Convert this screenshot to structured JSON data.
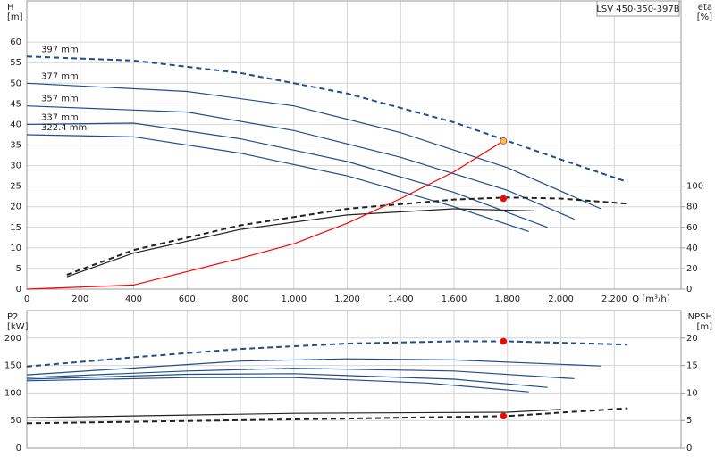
{
  "chart_data": [
    {
      "type": "line",
      "title": "LSV 450-350-397B",
      "y_label": "H",
      "y_unit": "[m]",
      "y2_label": "eta",
      "y2_unit": "[%]",
      "x_label": "Q [m³/h]",
      "xlim": [
        0,
        2450
      ],
      "xticks": [
        0,
        200,
        400,
        600,
        800,
        {
          "value": 1000,
          "label": "1,000"
        },
        {
          "value": 1200,
          "label": "1,200"
        },
        {
          "value": 1400,
          "label": "1,400"
        },
        {
          "value": 1600,
          "label": "1,600"
        },
        {
          "value": 1800,
          "label": "1,800"
        },
        {
          "value": 2000,
          "label": "2,000"
        },
        {
          "value": 2200,
          "label": "2,200"
        }
      ],
      "x_tick_labels": true,
      "ylim": [
        0,
        70
      ],
      "yticks": [
        0,
        5,
        10,
        15,
        20,
        25,
        30,
        35,
        40,
        45,
        50,
        55,
        60
      ],
      "y2lim": [
        0,
        280
      ],
      "y2ticks": [
        0,
        20,
        40,
        60,
        80,
        100
      ],
      "grid": true,
      "series": [
        {
          "name": "397 mm",
          "color": "#1f4e8c",
          "dashed": true,
          "x": [
            0,
            400,
            800,
            1200,
            1600,
            1800,
            2000,
            2250
          ],
          "values": [
            56.5,
            55.5,
            52.5,
            47.5,
            40.5,
            36,
            31.5,
            26
          ]
        },
        {
          "name": "377 mm",
          "color": "#1f4e8c",
          "x": [
            0,
            600,
            1000,
            1400,
            1800,
            2150
          ],
          "values": [
            50,
            48,
            44.5,
            38,
            29.5,
            19.5
          ]
        },
        {
          "name": "357 mm",
          "color": "#1f4e8c",
          "x": [
            0,
            600,
            1000,
            1400,
            1800,
            2050
          ],
          "values": [
            44.5,
            43,
            38.5,
            32,
            24,
            17
          ]
        },
        {
          "name": "337 mm",
          "color": "#1f4e8c",
          "x": [
            0,
            400,
            800,
            1200,
            1600,
            1950
          ],
          "values": [
            40,
            40.3,
            36.5,
            31,
            23.5,
            15
          ]
        },
        {
          "name": "322.4 mm",
          "color": "#1f4e8c",
          "x": [
            0,
            400,
            800,
            1200,
            1600,
            1880
          ],
          "values": [
            37.5,
            37,
            33,
            27.5,
            20,
            14
          ]
        },
        {
          "color": "#222222",
          "axis": "y2",
          "dashed": true,
          "x": [
            150,
            400,
            800,
            1200,
            1600,
            1800,
            2000,
            2250
          ],
          "values": [
            14,
            38,
            62,
            78,
            87,
            89,
            88,
            83
          ]
        },
        {
          "color": "#222222",
          "axis": "y2",
          "x": [
            150,
            400,
            800,
            1200,
            1600,
            1900
          ],
          "values": [
            12,
            35,
            58,
            72,
            78,
            76
          ]
        },
        {
          "color": "#ff0000",
          "x": [
            0,
            400,
            800,
            1000,
            1200,
            1400,
            1600,
            1785
          ],
          "values": [
            0,
            1,
            7.5,
            11,
            16,
            22,
            28.5,
            36
          ]
        },
        {
          "color": "#f6c342",
          "mode": "marker",
          "x": [
            1785
          ],
          "values": [
            36
          ]
        },
        {
          "color": "#ff0000",
          "mode": "marker",
          "axis": "y2",
          "x": [
            1785
          ],
          "values": [
            88
          ]
        }
      ]
    },
    {
      "type": "line",
      "y_label": "P2",
      "y_unit": "[kW]",
      "y2_label": "NPSH",
      "y2_unit": "[m]",
      "xlim": [
        0,
        2450
      ],
      "xticks": [
        0,
        200,
        400,
        600,
        800,
        1000,
        1200,
        1400,
        1600,
        1800,
        2000,
        2200
      ],
      "x_tick_labels": false,
      "ylim": [
        0,
        250
      ],
      "yticks": [
        0,
        50,
        100,
        150,
        200
      ],
      "y2lim": [
        0,
        25
      ],
      "y2ticks": [
        0,
        5,
        10,
        15,
        20
      ],
      "grid": true,
      "series": [
        {
          "color": "#1f4e8c",
          "dashed": true,
          "x": [
            0,
            400,
            800,
            1200,
            1600,
            1800,
            2250
          ],
          "values": [
            148,
            165,
            180,
            190,
            194,
            194,
            188
          ]
        },
        {
          "color": "#1f4e8c",
          "x": [
            0,
            800,
            1200,
            1600,
            2150
          ],
          "values": [
            133,
            158,
            162,
            160,
            149
          ]
        },
        {
          "color": "#1f4e8c",
          "x": [
            0,
            600,
            1000,
            1600,
            2050
          ],
          "values": [
            128,
            140,
            145,
            140,
            126
          ]
        },
        {
          "color": "#1f4e8c",
          "x": [
            0,
            600,
            1000,
            1600,
            1950
          ],
          "values": [
            125,
            134,
            135,
            125,
            110
          ]
        },
        {
          "color": "#1f4e8c",
          "x": [
            0,
            600,
            1000,
            1500,
            1880
          ],
          "values": [
            122,
            128,
            128,
            118,
            102
          ]
        },
        {
          "color": "#222222",
          "axis": "y2",
          "dashed": true,
          "x": [
            0,
            1000,
            1800,
            2250
          ],
          "values": [
            4.5,
            5.2,
            5.8,
            7.2
          ]
        },
        {
          "color": "#222222",
          "axis": "y2",
          "x": [
            0,
            1000,
            1800,
            2000
          ],
          "values": [
            5.5,
            6.3,
            6.5,
            7
          ]
        },
        {
          "color": "#ff0000",
          "mode": "marker",
          "x": [
            1785
          ],
          "values": [
            194
          ]
        },
        {
          "color": "#ff0000",
          "mode": "marker",
          "axis": "y2",
          "x": [
            1785
          ],
          "values": [
            5.8
          ]
        }
      ]
    }
  ]
}
